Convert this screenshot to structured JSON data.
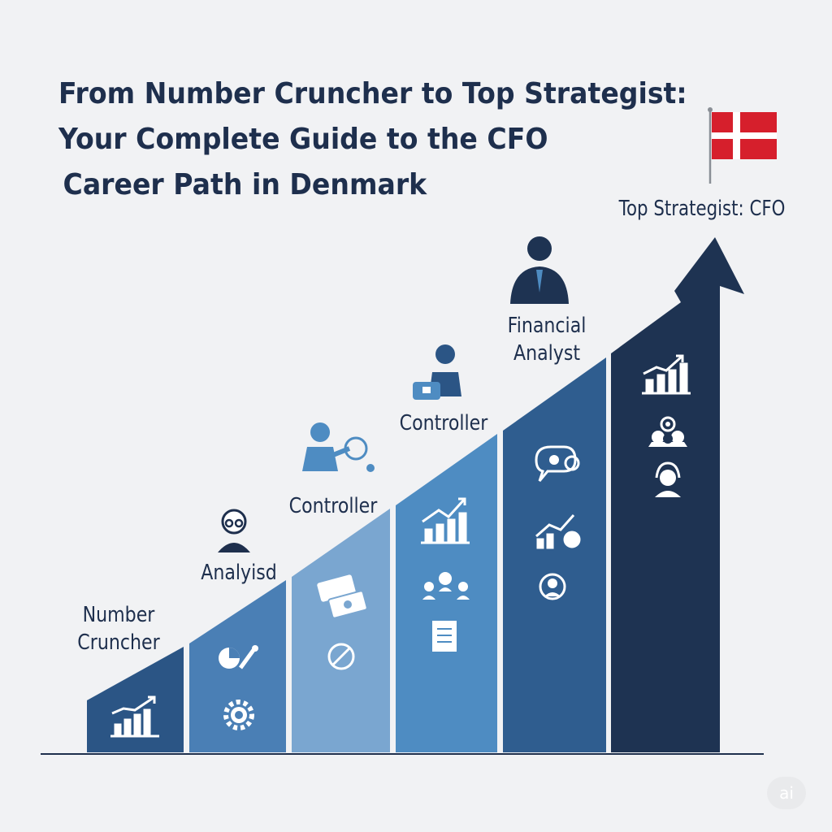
{
  "title": {
    "line1": "From Number Cruncher to Top Strategist:",
    "line2": "Your Complete Guide to the CFO",
    "line3": "Career Path in Denmark"
  },
  "steps": [
    {
      "label": "Number Cruncher",
      "label_lines": [
        "Number",
        "Cruncher"
      ],
      "color": "#2b5585",
      "icons": [
        "bar-chart-growth-icon"
      ]
    },
    {
      "label": "Analyisd",
      "color": "#4a7fb5",
      "icons": [
        "analyst-person-icon",
        "pie-chart-pencil-icon",
        "gear-icon"
      ]
    },
    {
      "label": "Controller",
      "color": "#7aa6d0",
      "icons": [
        "presenter-person-icon",
        "money-bills-icon",
        "no-cash-icon"
      ]
    },
    {
      "label": "Controller",
      "color": "#4e8cc2",
      "icons": [
        "manager-person-icon",
        "bar-chart-growth-icon",
        "team-network-icon",
        "document-icon"
      ]
    },
    {
      "label": "Financial Analyst",
      "label_lines": [
        "Financial",
        "Analyst"
      ],
      "color": "#2f5d8f",
      "icons": [
        "executive-person-icon",
        "chat-bubbles-icon",
        "growth-chart-icon",
        "user-refresh-icon"
      ]
    },
    {
      "label": "Top Strategist: CFO",
      "color": "#1e3352",
      "icons": [
        "denmark-flag-icon",
        "bar-chart-growth-icon",
        "team-target-icon",
        "headset-user-icon"
      ]
    }
  ],
  "colors": {
    "text": "#1e2f4d",
    "background": "#f1f2f4",
    "flag_red": "#d61f2c",
    "baseline": "#1e2f4d"
  },
  "badge": "ai"
}
